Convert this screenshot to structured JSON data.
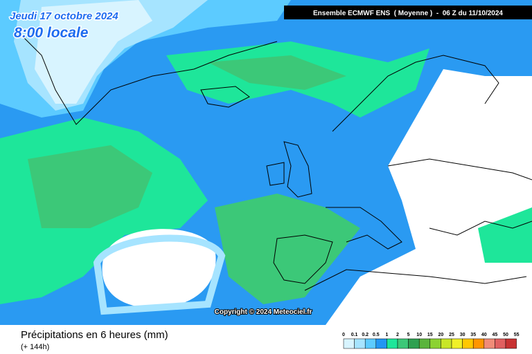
{
  "header": {
    "date": "Jeudi 17 octobre 2024",
    "time": "8:00 locale",
    "model": "Ensemble ECMWF ENS  ( Moyenne )  -  06 Z du 11/10/2024"
  },
  "copyright": "Copyright © 2024 Meteociel.fr",
  "footer": {
    "title": "Précipitations en 6 heures (mm)",
    "subtitle": "(+ 144h)"
  },
  "legend": {
    "labels": [
      "0",
      "0.1",
      "0.2",
      "0.5",
      "1",
      "2",
      "5",
      "10",
      "15",
      "20",
      "25",
      "30",
      "35",
      "40",
      "45",
      "50",
      "55"
    ],
    "colors": [
      "#d8f4ff",
      "#a6e4ff",
      "#5ccbff",
      "#2196f3",
      "#1ee69a",
      "#3cc878",
      "#2ea050",
      "#5ab43c",
      "#8cd232",
      "#c8e628",
      "#f0f028",
      "#ffc800",
      "#ff9600",
      "#f08c78",
      "#e06060",
      "#c83232"
    ]
  }
}
